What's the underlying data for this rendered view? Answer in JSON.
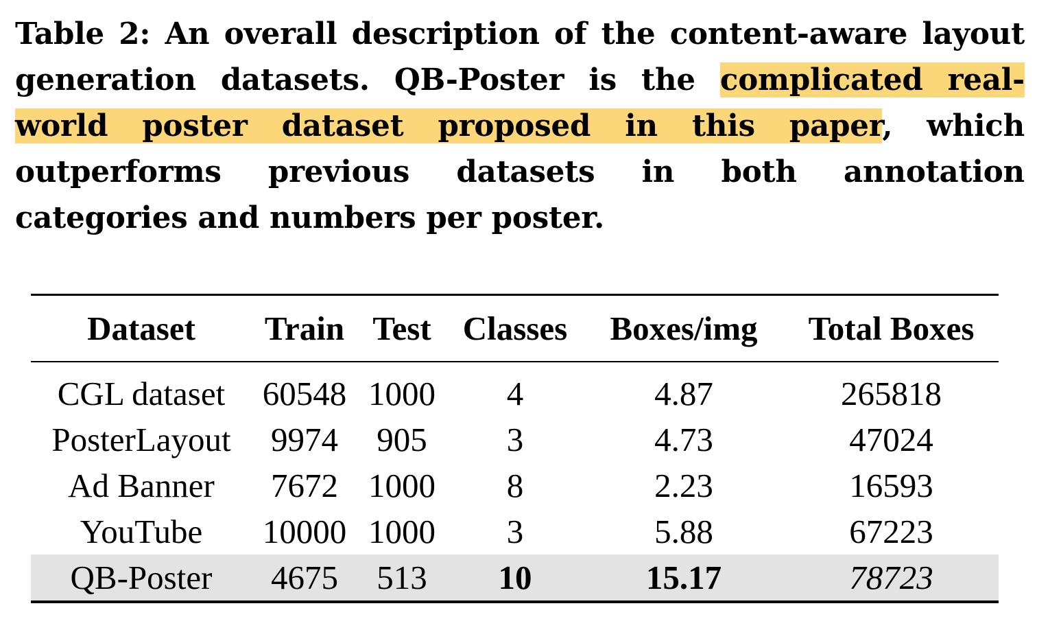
{
  "caption": {
    "before": "Table 2: An overall description of the content-aware layout generation datasets. QB-Poster is the ",
    "highlight": "complicated real-world poster dataset proposed in this paper",
    "after": ", which outperforms previous datasets in both annotation categories and numbers per poster."
  },
  "table": {
    "headers": [
      "Dataset",
      "Train",
      "Test",
      "Classes",
      "Boxes/img",
      "Total Boxes"
    ],
    "rows": [
      {
        "dataset": "CGL dataset",
        "train": "60548",
        "test": "1000",
        "classes": "4",
        "boxes_per_img": "4.87",
        "total_boxes": "265818"
      },
      {
        "dataset": "PosterLayout",
        "train": "9974",
        "test": "905",
        "classes": "3",
        "boxes_per_img": "4.73",
        "total_boxes": "47024"
      },
      {
        "dataset": "Ad Banner",
        "train": "7672",
        "test": "1000",
        "classes": "8",
        "boxes_per_img": "2.23",
        "total_boxes": "16593"
      },
      {
        "dataset": "YouTube",
        "train": "10000",
        "test": "1000",
        "classes": "3",
        "boxes_per_img": "5.88",
        "total_boxes": "67223"
      },
      {
        "dataset": "QB-Poster",
        "train": "4675",
        "test": "513",
        "classes": "10",
        "boxes_per_img": "15.17",
        "total_boxes": "78723"
      }
    ]
  },
  "colors": {
    "highlight": "#fbd77a",
    "row_shade": "#e3e3e3"
  }
}
